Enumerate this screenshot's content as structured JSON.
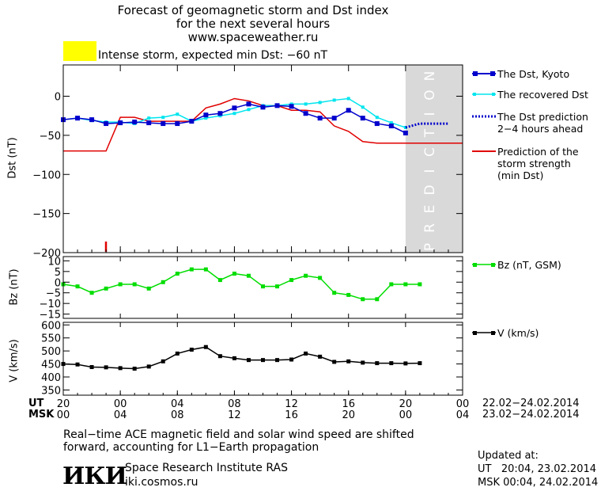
{
  "header": {
    "title_line1": "Forecast of geomagnetic storm and Dst index",
    "title_line2": "for the next several hours",
    "website": "www.spaceweather.ru",
    "storm_text": "Intense storm, expected min Dst: −60 nT",
    "storm_color": "#ffff00"
  },
  "axes": {
    "dst_label": "Dst (nT)",
    "bz_label": "Bz (nT)",
    "v_label": "V (km/s)",
    "ut_label": "UT",
    "msk_label": "MSK",
    "ut_ticks": [
      "20",
      "00",
      "04",
      "08",
      "12",
      "16",
      "20",
      "00"
    ],
    "msk_ticks": [
      "00",
      "04",
      "08",
      "12",
      "16",
      "20",
      "00",
      "04"
    ],
    "ut_range": "22.02−24.02.2014",
    "msk_range": "23.02−24.02.2014"
  },
  "legend": {
    "dst_kyoto": "The Dst, Kyoto",
    "recovered": "The recovered Dst",
    "prediction_line1": "The Dst prediction",
    "prediction_line2": "2−4 hours ahead",
    "strength_line1": "Prediction of the",
    "strength_line2": "storm strength",
    "strength_line3": "(min Dst)",
    "bz": "Bz (nT, GSM)",
    "v": "V (km/s)",
    "prediction_band": "PREDICTION"
  },
  "footer": {
    "note_line1": "Real−time ACE magnetic field and solar wind speed are shifted",
    "note_line2": "forward, accounting for L1−Earth propagation",
    "logo": "ИКИ",
    "institute": "Space Research Institute RAS",
    "institute_site": "iki.cosmos.ru",
    "updated_label": "Updated at:",
    "updated_ut": "UT   20:04, 23.02.2014",
    "updated_msk": "MSK 00:04, 24.02.2014"
  },
  "colors": {
    "dst_kyoto": "#0000cc",
    "recovered": "#00e5ee",
    "prediction": "#0000cc",
    "strength": "#e00000",
    "bz": "#00dd00",
    "v": "#000000",
    "prediction_band": "#d9d9d9"
  },
  "chart_data": [
    {
      "type": "line",
      "ylabel": "Dst (nT)",
      "ylim": [
        -200,
        40
      ],
      "yticks": [
        0,
        -50,
        -100,
        -150,
        -200
      ],
      "xlim_hours": [
        20,
        48
      ],
      "prediction_start_hour": 44,
      "series": [
        {
          "name": "The Dst, Kyoto",
          "x": [
            20,
            21,
            22,
            23,
            24,
            25,
            26,
            27,
            28,
            29,
            30,
            31,
            32,
            33,
            34,
            35,
            36,
            37,
            38,
            39,
            40,
            41,
            42,
            43,
            44
          ],
          "values": [
            -30,
            -28,
            -30,
            -35,
            -34,
            -33,
            -34,
            -35,
            -35,
            -32,
            -24,
            -22,
            -15,
            -10,
            -14,
            -12,
            -13,
            -22,
            -28,
            -28,
            -18,
            -28,
            -35,
            -38,
            -47
          ]
        },
        {
          "name": "The recovered Dst",
          "x": [
            20,
            21,
            22,
            23,
            24,
            25,
            26,
            27,
            28,
            29,
            30,
            31,
            32,
            33,
            34,
            35,
            36,
            37,
            38,
            39,
            40,
            41,
            42,
            43,
            44
          ],
          "values": [
            -30,
            -28,
            -31,
            -33,
            -33,
            -35,
            -28,
            -27,
            -23,
            -32,
            -28,
            -25,
            -22,
            -17,
            -12,
            -12,
            -10,
            -10,
            -8,
            -5,
            -3,
            -14,
            -27,
            -34,
            -40
          ]
        },
        {
          "name": "The Dst prediction 2−4 hours ahead",
          "x": [
            44,
            45,
            46,
            47
          ],
          "values": [
            -40,
            -35,
            -35,
            -35
          ]
        },
        {
          "name": "Prediction of the storm strength (min Dst)",
          "x": [
            20,
            21,
            22,
            23,
            24,
            25,
            26,
            27,
            28,
            29,
            30,
            31,
            32,
            33,
            34,
            35,
            36,
            37,
            38,
            39,
            40,
            41,
            42,
            43,
            44,
            45,
            46,
            47,
            48
          ],
          "values": [
            -70,
            -70,
            -70,
            -70,
            -27,
            -27,
            -32,
            -32,
            -32,
            -32,
            -15,
            -10,
            -3,
            -6,
            -12,
            -12,
            -18,
            -18,
            -20,
            -38,
            -45,
            -58,
            -60,
            -60,
            -60,
            -60,
            -60,
            -60,
            -60
          ]
        }
      ]
    },
    {
      "type": "line",
      "ylabel": "Bz (nT)",
      "ylim": [
        -17,
        12
      ],
      "yticks": [
        10,
        5,
        0,
        -5,
        -10,
        -15
      ],
      "series": [
        {
          "name": "Bz (nT, GSM)",
          "x": [
            20,
            21,
            22,
            23,
            24,
            25,
            26,
            27,
            28,
            29,
            30,
            31,
            32,
            33,
            34,
            35,
            36,
            37,
            38,
            39,
            40,
            41,
            42,
            43,
            44,
            45
          ],
          "values": [
            -1,
            -2,
            -5,
            -3,
            -1,
            -1,
            -3,
            0,
            4,
            6,
            6,
            1,
            4,
            3,
            -2,
            -2,
            1,
            3,
            2,
            -5,
            -6,
            -8,
            -8,
            -1,
            -1,
            -1
          ]
        }
      ]
    },
    {
      "type": "line",
      "ylabel": "V (km/s)",
      "ylim": [
        330,
        610
      ],
      "yticks": [
        600,
        550,
        500,
        450,
        400,
        350
      ],
      "series": [
        {
          "name": "V (km/s)",
          "x": [
            20,
            21,
            22,
            23,
            24,
            25,
            26,
            27,
            28,
            29,
            30,
            31,
            32,
            33,
            34,
            35,
            36,
            37,
            38,
            39,
            40,
            41,
            42,
            43,
            44,
            45
          ],
          "values": [
            450,
            448,
            438,
            437,
            434,
            432,
            440,
            460,
            490,
            505,
            515,
            480,
            472,
            465,
            465,
            465,
            467,
            490,
            478,
            458,
            460,
            455,
            453,
            453,
            452,
            453
          ]
        }
      ]
    }
  ]
}
